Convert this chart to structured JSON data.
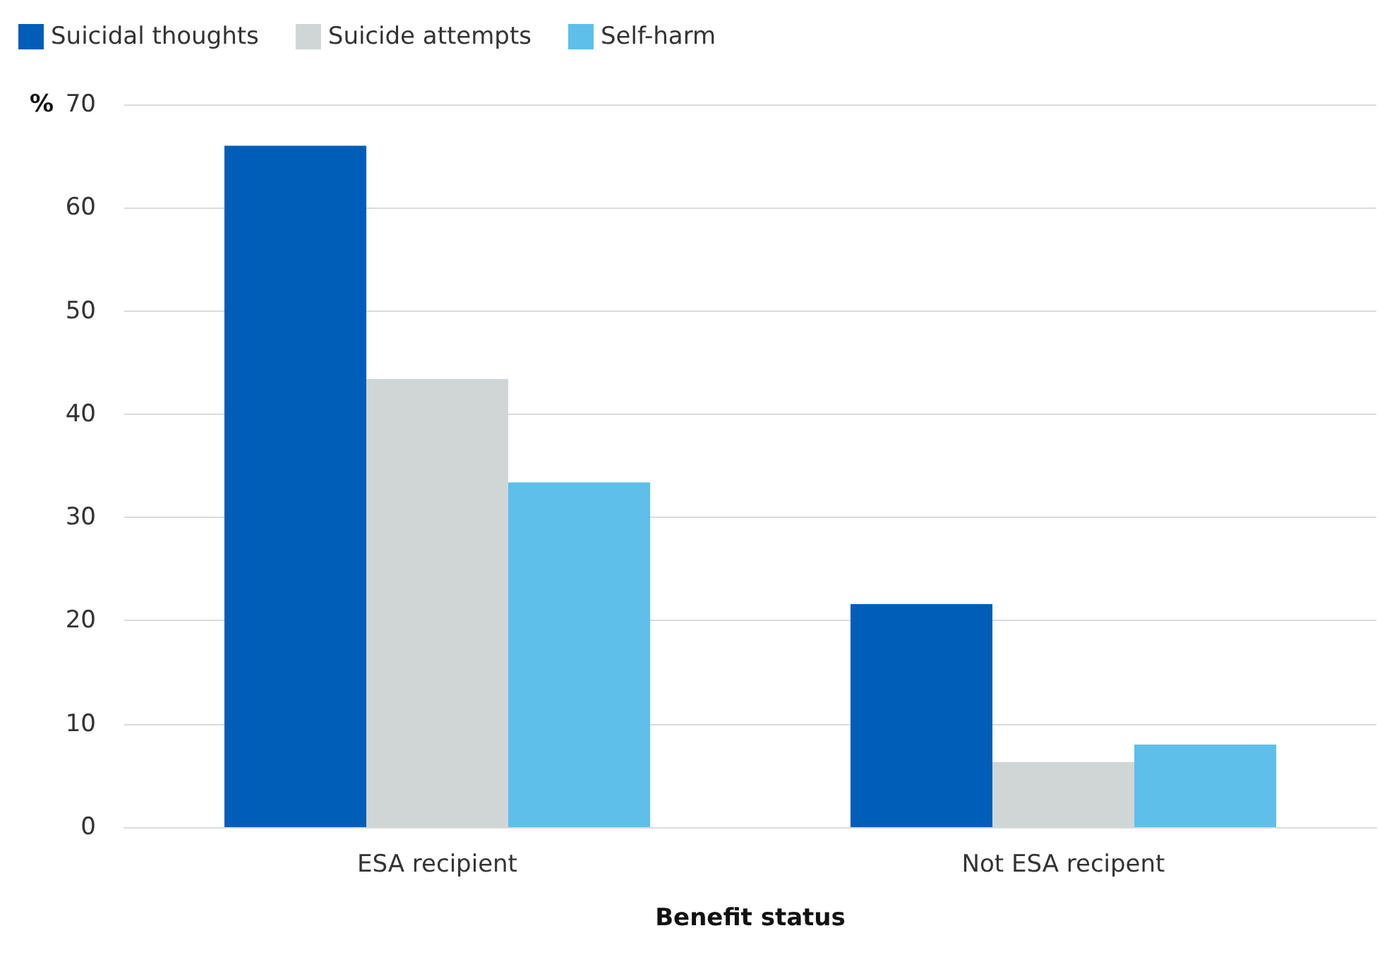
{
  "chart_data": {
    "type": "bar",
    "categories": [
      "ESA recipient",
      "Not ESA recipent"
    ],
    "xlabel": "Benefit status",
    "ylabel": "%",
    "series": [
      {
        "name": "Suicidal thoughts",
        "color": "#005eb8",
        "values": [
          66,
          21.6
        ]
      },
      {
        "name": "Suicide attempts",
        "color": "#d0d5d6",
        "values": [
          43.4,
          6.3
        ]
      },
      {
        "name": "Self-harm",
        "color": "#5ec0ea",
        "values": [
          33.4,
          8
        ]
      }
    ],
    "ylim": [
      0,
      70
    ],
    "yticks": [
      0,
      10,
      20,
      30,
      40,
      50,
      60,
      70
    ],
    "grid": "y",
    "legend": "top left"
  }
}
